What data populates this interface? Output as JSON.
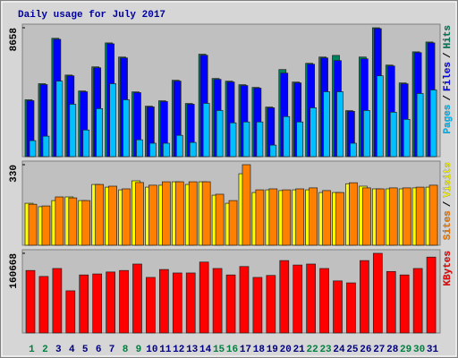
{
  "chart_data": [
    {
      "type": "bar",
      "title": "Daily usage for July 2017",
      "title_color": "#0000a0",
      "ylim": [
        0,
        8658
      ],
      "yticks": [
        8658
      ],
      "label_separator": "/",
      "series": [
        {
          "name": "Pages",
          "color": "#00c0ff",
          "values": [
            1075,
            1375,
            5075,
            3520,
            1790,
            3225,
            4900,
            3820,
            1130,
            900,
            900,
            1430,
            955,
            3580,
            3100,
            2270,
            2330,
            2330,
            775,
            2690,
            2330,
            3280,
            4360,
            4360,
            900,
            3100,
            5430,
            2985,
            2505,
            4240,
            4480
          ]
        },
        {
          "name": "Files",
          "color": "#0000ff",
          "values": [
            3760,
            4840,
            7880,
            5430,
            4360,
            5970,
            7580,
            6630,
            4300,
            3340,
            3700,
            5075,
            3520,
            6810,
            5190,
            5015,
            4775,
            4600,
            3280,
            5610,
            4955,
            6210,
            6630,
            6450,
            3045,
            6570,
            8600,
            6090,
            4895,
            6985,
            7640
          ]
        },
        {
          "name": "Hits",
          "color": "#00805c",
          "values": [
            3820,
            4900,
            7950,
            5480,
            4410,
            6030,
            7640,
            6690,
            4350,
            3390,
            3750,
            5130,
            3570,
            6880,
            5250,
            5070,
            4830,
            4650,
            3330,
            5850,
            5010,
            6270,
            6690,
            6800,
            3090,
            6690,
            8658,
            6150,
            4950,
            7040,
            7700
          ]
        }
      ]
    },
    {
      "type": "bar",
      "ylim": [
        0,
        330
      ],
      "yticks": [
        330
      ],
      "label_separator": "/",
      "series": [
        {
          "name": "Sites",
          "color": "#ff8000",
          "values": [
            168,
            161,
            198,
            194,
            183,
            249,
            242,
            231,
            257,
            246,
            260,
            260,
            260,
            260,
            209,
            183,
            330,
            227,
            231,
            227,
            231,
            235,
            224,
            216,
            256,
            235,
            231,
            235,
            235,
            238,
            246
          ]
        },
        {
          "name": "Visits",
          "color": "#ffff00",
          "values": [
            172,
            158,
            183,
            198,
            183,
            249,
            238,
            227,
            264,
            238,
            246,
            260,
            249,
            260,
            205,
            172,
            293,
            216,
            227,
            224,
            227,
            227,
            216,
            216,
            252,
            242,
            231,
            231,
            231,
            235,
            238
          ]
        }
      ]
    },
    {
      "type": "bar",
      "ylim": [
        0,
        160668
      ],
      "yticks": [
        160668
      ],
      "categories": [
        "1",
        "2",
        "3",
        "4",
        "5",
        "6",
        "7",
        "8",
        "9",
        "10",
        "11",
        "12",
        "13",
        "14",
        "15",
        "16",
        "17",
        "18",
        "19",
        "20",
        "21",
        "22",
        "23",
        "24",
        "25",
        "26",
        "27",
        "28",
        "29",
        "30",
        "31"
      ],
      "category_color": "#000080",
      "highlight_color": "#008040",
      "highlight_categories": [
        "1",
        "2",
        "8",
        "9",
        "15",
        "16",
        "22",
        "23",
        "29",
        "30"
      ],
      "series": [
        {
          "name": "KBytes",
          "color": "#ff0000",
          "values": [
            126000,
            114000,
            130000,
            85000,
            117000,
            119000,
            123000,
            126000,
            139000,
            112000,
            128000,
            121000,
            121000,
            143000,
            130000,
            117000,
            134000,
            112000,
            116000,
            146000,
            137000,
            139000,
            130000,
            105000,
            101000,
            146000,
            160668,
            124000,
            117000,
            130000,
            153000
          ]
        }
      ]
    }
  ]
}
